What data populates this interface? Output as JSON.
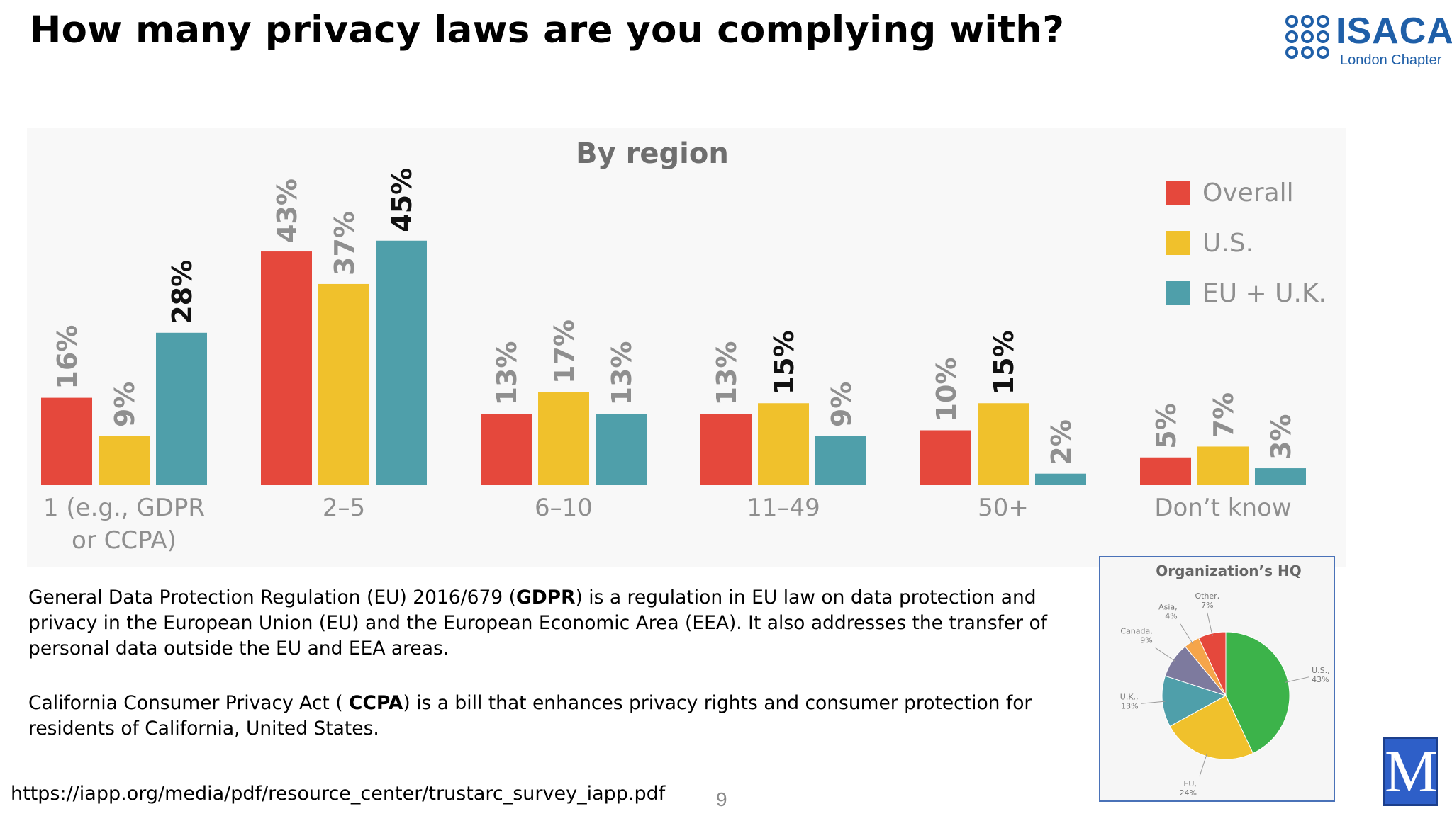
{
  "slide": {
    "title": "How many privacy laws are you complying with?",
    "logo_text": "ISACA",
    "logo_subtitle": "London Chapter",
    "paragraph1_pre": " General Data Protection Regulation (EU) 2016/679 (",
    "paragraph1_bold": "GDPR",
    "paragraph1_post": ") is a regulation in EU law on data protection and privacy in the European Union (EU) and the European Economic Area (EEA). It also addresses the transfer of personal data outside the EU and EEA areas.",
    "paragraph2_pre": "California Consumer Privacy Act ( ",
    "paragraph2_bold": "CCPA",
    "paragraph2_post": ") is a bill that enhances privacy rights and consumer protection for residents of California, United States.",
    "source_url": "https://iapp.org/media/pdf/resource_center/trustarc_survey_iapp.pdf",
    "page_number": "9",
    "corner_logo_letter": "M"
  },
  "colors": {
    "overall": "#e5483c",
    "us": "#f0c12c",
    "eu_uk": "#4f9faa",
    "label_gray": "#8f8f8f",
    "pie_us": "#3cb34a",
    "pie_eu": "#f0c12c",
    "pie_uk": "#4f9faa",
    "pie_canada": "#7d7a9e",
    "pie_asia": "#f5a54a",
    "pie_other": "#e5483c"
  },
  "chart_data": [
    {
      "type": "bar",
      "title": "By region",
      "categories": [
        "1 (e.g., GDPR or CCPA)",
        "2–5",
        "6–10",
        "11–49",
        "50+",
        "Don’t know"
      ],
      "category_lines": [
        [
          "1 (e.g., GDPR",
          "or CCPA)"
        ],
        [
          "2–5"
        ],
        [
          "6–10"
        ],
        [
          "11–49"
        ],
        [
          "50+"
        ],
        [
          "Don’t know"
        ]
      ],
      "series": [
        {
          "name": "Overall",
          "values": [
            16,
            43,
            13,
            13,
            10,
            5
          ]
        },
        {
          "name": "U.S.",
          "values": [
            9,
            37,
            17,
            15,
            15,
            7
          ]
        },
        {
          "name": "EU + U.K.",
          "values": [
            28,
            45,
            13,
            9,
            2,
            3
          ]
        }
      ],
      "emphasized": [
        [
          2,
          0
        ],
        [
          2,
          1
        ],
        [
          1,
          3
        ],
        [
          1,
          4
        ]
      ],
      "unit": "%",
      "legend_position": "top-right",
      "grid": false
    },
    {
      "type": "pie",
      "title": "Organization’s HQ",
      "slices": [
        {
          "label": "U.S.",
          "value": 43
        },
        {
          "label": "EU",
          "value": 24
        },
        {
          "label": "U.K.",
          "value": 13
        },
        {
          "label": "Canada",
          "value": 9
        },
        {
          "label": "Asia",
          "value": 4
        },
        {
          "label": "Other",
          "value": 7
        }
      ],
      "unit": "%"
    }
  ]
}
